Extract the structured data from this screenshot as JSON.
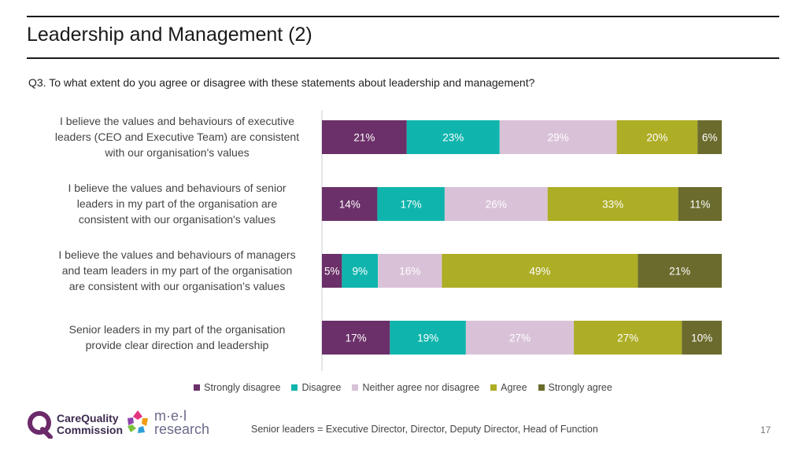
{
  "header": {
    "title": "Leadership and Management (2)",
    "question": "Q3. To what extent do you agree or disagree with these statements about leadership and management?"
  },
  "chart_data": {
    "type": "bar",
    "orientation": "horizontal-stacked-100",
    "categories": [
      "I believe the values and behaviours of executive leaders (CEO and Executive Team) are consistent with our organisation's values",
      "I believe the values and behaviours of senior leaders in my part of the organisation  are consistent with our organisation's values",
      "I believe the values and behaviours of managers and team leaders in my part of the organisation are consistent with our organisation’s values",
      "Senior leaders in my part of the organisation provide clear direction and leadership"
    ],
    "series": [
      {
        "name": "Strongly disagree",
        "color": "#6b3069",
        "label_color": "#ffffff",
        "values": [
          21,
          14,
          5,
          17
        ]
      },
      {
        "name": "Disagree",
        "color": "#0fb5ad",
        "label_color": "#ffffff",
        "values": [
          23,
          17,
          9,
          19
        ]
      },
      {
        "name": "Neither agree nor disagree",
        "color": "#d9c2d8",
        "label_color": "#ffffff",
        "values": [
          29,
          26,
          16,
          27
        ]
      },
      {
        "name": "Agree",
        "color": "#adad26",
        "label_color": "#ffffff",
        "values": [
          20,
          33,
          49,
          27
        ]
      },
      {
        "name": "Strongly agree",
        "color": "#6b6b2e",
        "label_color": "#ffffff",
        "values": [
          6,
          11,
          21,
          10
        ]
      }
    ],
    "value_suffix": "%",
    "xlim": [
      0,
      100
    ],
    "legend_position": "bottom"
  },
  "statements": [
    {
      "lines": [
        "I believe the values and behaviours of executive",
        "leaders (CEO and Executive Team) are consistent",
        "with our organisation's values"
      ]
    },
    {
      "lines": [
        "I believe the values and behaviours of senior",
        "leaders in my part of the organisation  are",
        "consistent with our organisation's values"
      ]
    },
    {
      "lines": [
        "I believe the values and behaviours of managers",
        "and team leaders in my part of the organisation",
        "are consistent with our organisation’s values"
      ]
    },
    {
      "lines": [
        "Senior leaders in my part of the organisation",
        "provide clear direction and leadership"
      ]
    }
  ],
  "logos": {
    "cqc_line1": "CareQuality",
    "cqc_line2": "Commission",
    "mel_line1": "m·e·l",
    "mel_line2": "research"
  },
  "footer": {
    "note": "Senior leaders = Executive Director, Director, Deputy Director, Head of Function",
    "page": "17"
  }
}
